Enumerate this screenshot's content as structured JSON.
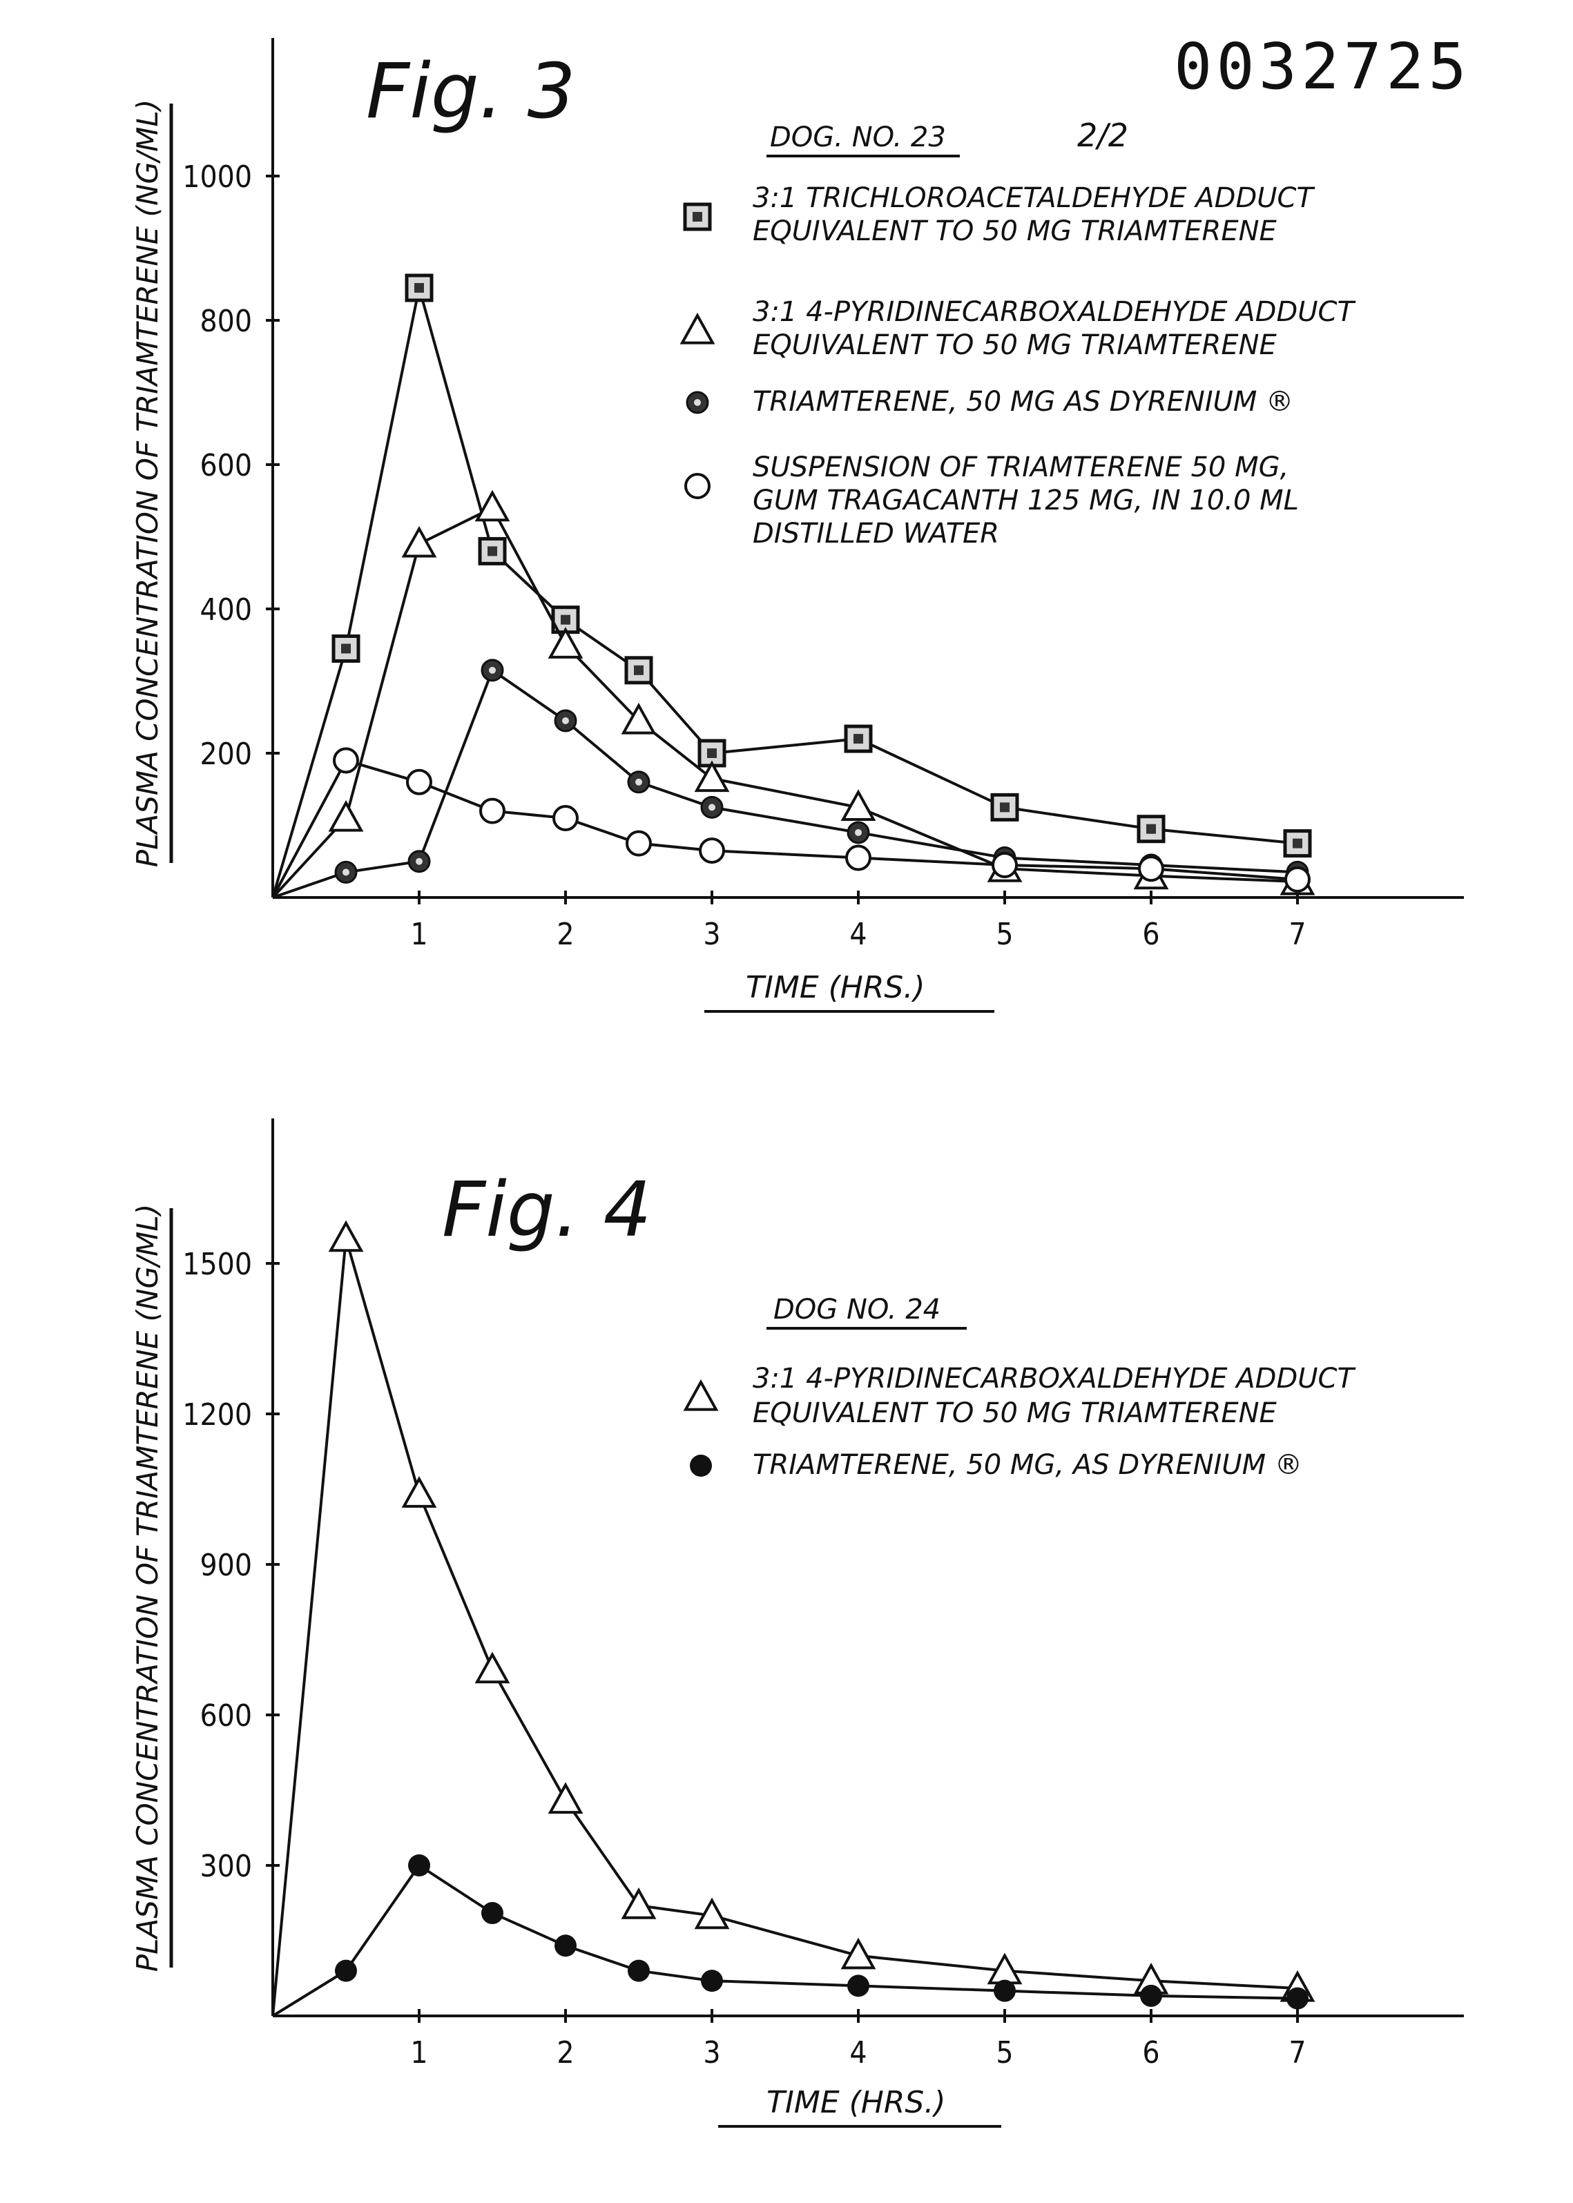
{
  "document_number": "0032725",
  "page_label": "2/2",
  "chart_data": [
    {
      "type": "line",
      "title": "Fig. 3",
      "subtitle": "DOG. NO. 23",
      "xlabel": "TIME (HRS.)",
      "ylabel": "PLASMA CONCENTRATION OF TRIAMTERENE (NG/ML)",
      "xlim": [
        0,
        7.4
      ],
      "ylim": [
        0,
        1000
      ],
      "x_ticks": [
        1,
        2,
        3,
        4,
        5,
        6,
        7
      ],
      "y_ticks": [
        200,
        400,
        600,
        800,
        1000
      ],
      "legend_position": "top-right",
      "series": [
        {
          "name": "3:1 TRICHLOROACETALDEHYDE ADDUCT EQUIVALENT TO 50 MG TRIAMTERENE",
          "legend_lines": [
            "3:1 TRICHLOROACETALDEHYDE ADDUCT",
            "EQUIVALENT TO 50 MG TRIAMTERENE"
          ],
          "marker": "square",
          "x": [
            0,
            0.5,
            1,
            1.5,
            2,
            2.5,
            3,
            4,
            5,
            6,
            7
          ],
          "y": [
            0,
            345,
            845,
            480,
            385,
            315,
            200,
            220,
            125,
            95,
            75
          ]
        },
        {
          "name": "3:1 4-PYRIDINECARBOXALDEHYDE ADDUCT EQUIVALENT TO 50 MG TRIAMTERENE",
          "legend_lines": [
            "3:1 4-PYRIDINECARBOXALDEHYDE ADDUCT",
            "EQUIVALENT TO 50 MG TRIAMTERENE"
          ],
          "marker": "triangle",
          "x": [
            0,
            0.5,
            1,
            1.5,
            2,
            2.5,
            3,
            4,
            5,
            6,
            7
          ],
          "y": [
            0,
            110,
            490,
            540,
            350,
            245,
            165,
            125,
            40,
            30,
            22
          ]
        },
        {
          "name": "TRIAMTERENE, 50 MG AS DYRENIUM ®",
          "legend_lines": [
            "TRIAMTERENE, 50 MG AS DYRENIUM ®"
          ],
          "marker": "dotted-circle",
          "x": [
            0,
            0.5,
            1,
            1.5,
            2,
            2.5,
            3,
            4,
            5,
            6,
            7
          ],
          "y": [
            0,
            35,
            50,
            315,
            245,
            160,
            125,
            90,
            55,
            45,
            35
          ]
        },
        {
          "name": "SUSPENSION OF TRIAMTERENE 50 MG, GUM TRAGACANTH 125 MG, IN 10.0 ML DISTILLED WATER",
          "legend_lines": [
            "SUSPENSION OF TRIAMTERENE 50 MG,",
            "GUM TRAGACANTH 125 MG, IN 10.0 ML",
            "DISTILLED WATER"
          ],
          "marker": "open-circle",
          "x": [
            0,
            0.5,
            1,
            1.5,
            2,
            2.5,
            3,
            4,
            5,
            6,
            7
          ],
          "y": [
            0,
            190,
            160,
            120,
            110,
            75,
            65,
            55,
            45,
            40,
            25
          ]
        }
      ]
    },
    {
      "type": "line",
      "title": "Fig. 4",
      "subtitle": "DOG NO. 24",
      "xlabel": "TIME (HRS.)",
      "ylabel": "PLASMA CONCENTRATION OF TRIAMTERENE (NG/ML)",
      "xlim": [
        0,
        7.4
      ],
      "ylim": [
        0,
        1500
      ],
      "x_ticks": [
        1,
        2,
        3,
        4,
        5,
        6,
        7
      ],
      "y_ticks": [
        300,
        600,
        900,
        1200,
        1500
      ],
      "legend_position": "top-right",
      "series": [
        {
          "name": "3:1 4-PYRIDINECARBOXALDEHYDE ADDUCT EQUIVALENT TO 50 MG TRIAMTERENE",
          "legend_lines": [
            "3:1 4-PYRIDINECARBOXALDEHYDE ADDUCT",
            "EQUIVALENT TO 50 MG TRIAMTERENE"
          ],
          "marker": "triangle",
          "x": [
            0,
            0.5,
            1,
            1.5,
            2,
            2.5,
            3,
            4,
            5,
            6,
            7
          ],
          "y": [
            0,
            1550,
            1040,
            690,
            430,
            220,
            200,
            120,
            90,
            70,
            55
          ]
        },
        {
          "name": "TRIAMTERENE, 50 MG, AS DYRENIUM ®",
          "legend_lines": [
            "TRIAMTERENE, 50 MG, AS DYRENIUM ®"
          ],
          "marker": "filled-circle",
          "x": [
            0,
            0.5,
            1,
            1.5,
            2,
            2.5,
            3,
            4,
            5,
            6,
            7
          ],
          "y": [
            0,
            90,
            300,
            205,
            140,
            90,
            70,
            60,
            50,
            40,
            35
          ]
        }
      ]
    }
  ]
}
